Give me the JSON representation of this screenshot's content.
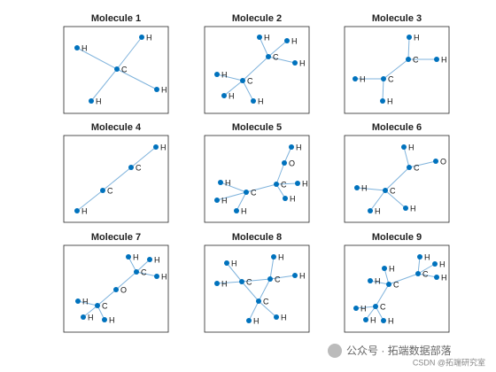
{
  "molecules": [
    {
      "title": "Molecule 1",
      "atoms": [
        "C",
        "H",
        "H",
        "H",
        "H"
      ]
    },
    {
      "title": "Molecule 2",
      "atoms": [
        "C",
        "C",
        "H",
        "H",
        "H",
        "H",
        "H",
        "H"
      ]
    },
    {
      "title": "Molecule 3",
      "atoms": [
        "C",
        "C",
        "H",
        "H",
        "H",
        "H"
      ]
    },
    {
      "title": "Molecule 4",
      "atoms": [
        "H",
        "C",
        "C",
        "H"
      ]
    },
    {
      "title": "Molecule 5",
      "atoms": [
        "H",
        "O",
        "C",
        "H",
        "H",
        "C",
        "H",
        "H",
        "H"
      ]
    },
    {
      "title": "Molecule 6",
      "atoms": [
        "H",
        "C",
        "O",
        "C",
        "H",
        "H",
        "H"
      ]
    },
    {
      "title": "Molecule 7",
      "atoms": [
        "H",
        "H",
        "C",
        "H",
        "O",
        "C",
        "H",
        "H",
        "H"
      ]
    },
    {
      "title": "Molecule 8",
      "atoms": [
        "H",
        "H",
        "C",
        "C",
        "H",
        "H",
        "C",
        "H",
        "H"
      ]
    },
    {
      "title": "Molecule 9",
      "atoms": [
        "H",
        "H",
        "C",
        "H",
        "C",
        "H",
        "H",
        "C",
        "H",
        "H",
        "H"
      ]
    }
  ],
  "watermark": {
    "text": "公众号 · 拓端数据部落",
    "credit": "CSDN @拓端研究室"
  }
}
